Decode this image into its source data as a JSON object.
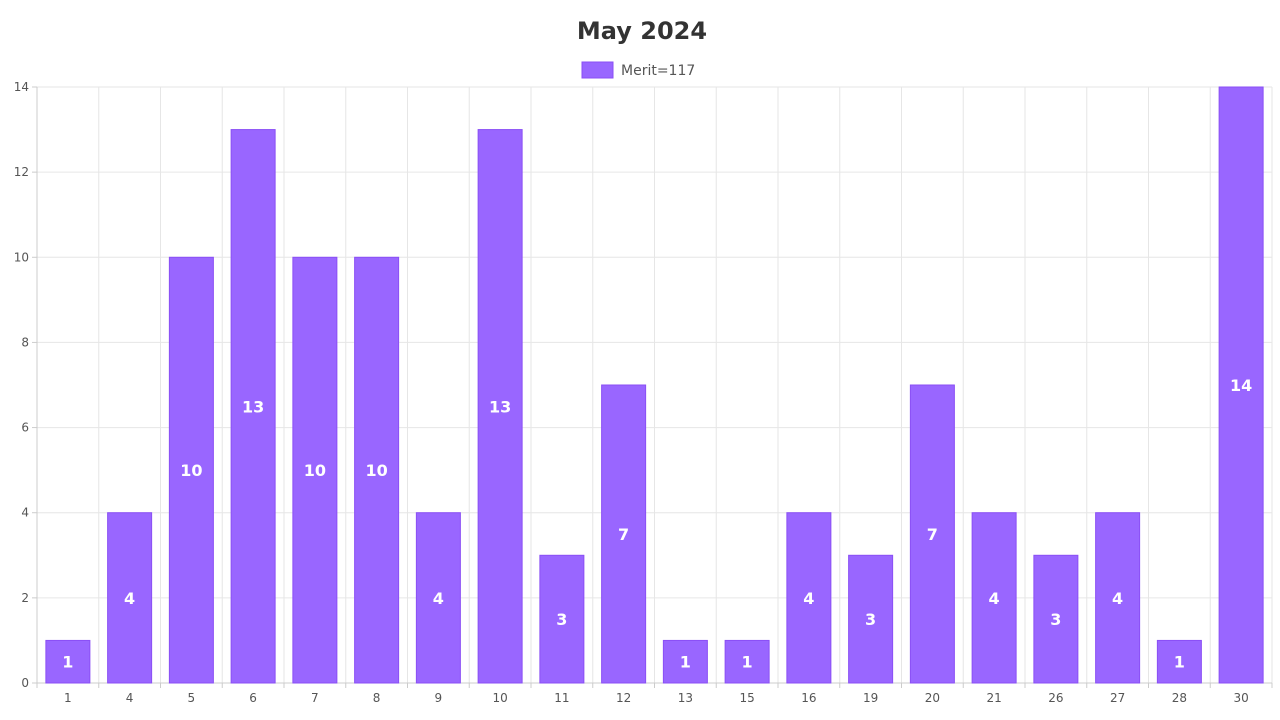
{
  "chart_data": {
    "type": "bar",
    "title": "May 2024",
    "legend": {
      "position": "top",
      "entries": [
        {
          "label": "Merit=117",
          "color": "#9966ff"
        }
      ]
    },
    "categories": [
      "1",
      "4",
      "5",
      "6",
      "7",
      "8",
      "9",
      "10",
      "11",
      "12",
      "13",
      "15",
      "16",
      "19",
      "20",
      "21",
      "26",
      "27",
      "28",
      "30"
    ],
    "series": [
      {
        "name": "Merit=117",
        "values": [
          1,
          4,
          10,
          13,
          10,
          10,
          4,
          13,
          3,
          7,
          1,
          1,
          4,
          3,
          7,
          4,
          3,
          4,
          1,
          14
        ],
        "color": "#9966ff",
        "border_color": "#8a4ff5",
        "label_color": "#ffffff"
      }
    ],
    "xlabel": "",
    "ylabel": "",
    "ylim": [
      0,
      14
    ],
    "yticks": [
      0,
      2,
      4,
      6,
      8,
      10,
      12,
      14
    ],
    "grid": true,
    "data_labels": true
  }
}
